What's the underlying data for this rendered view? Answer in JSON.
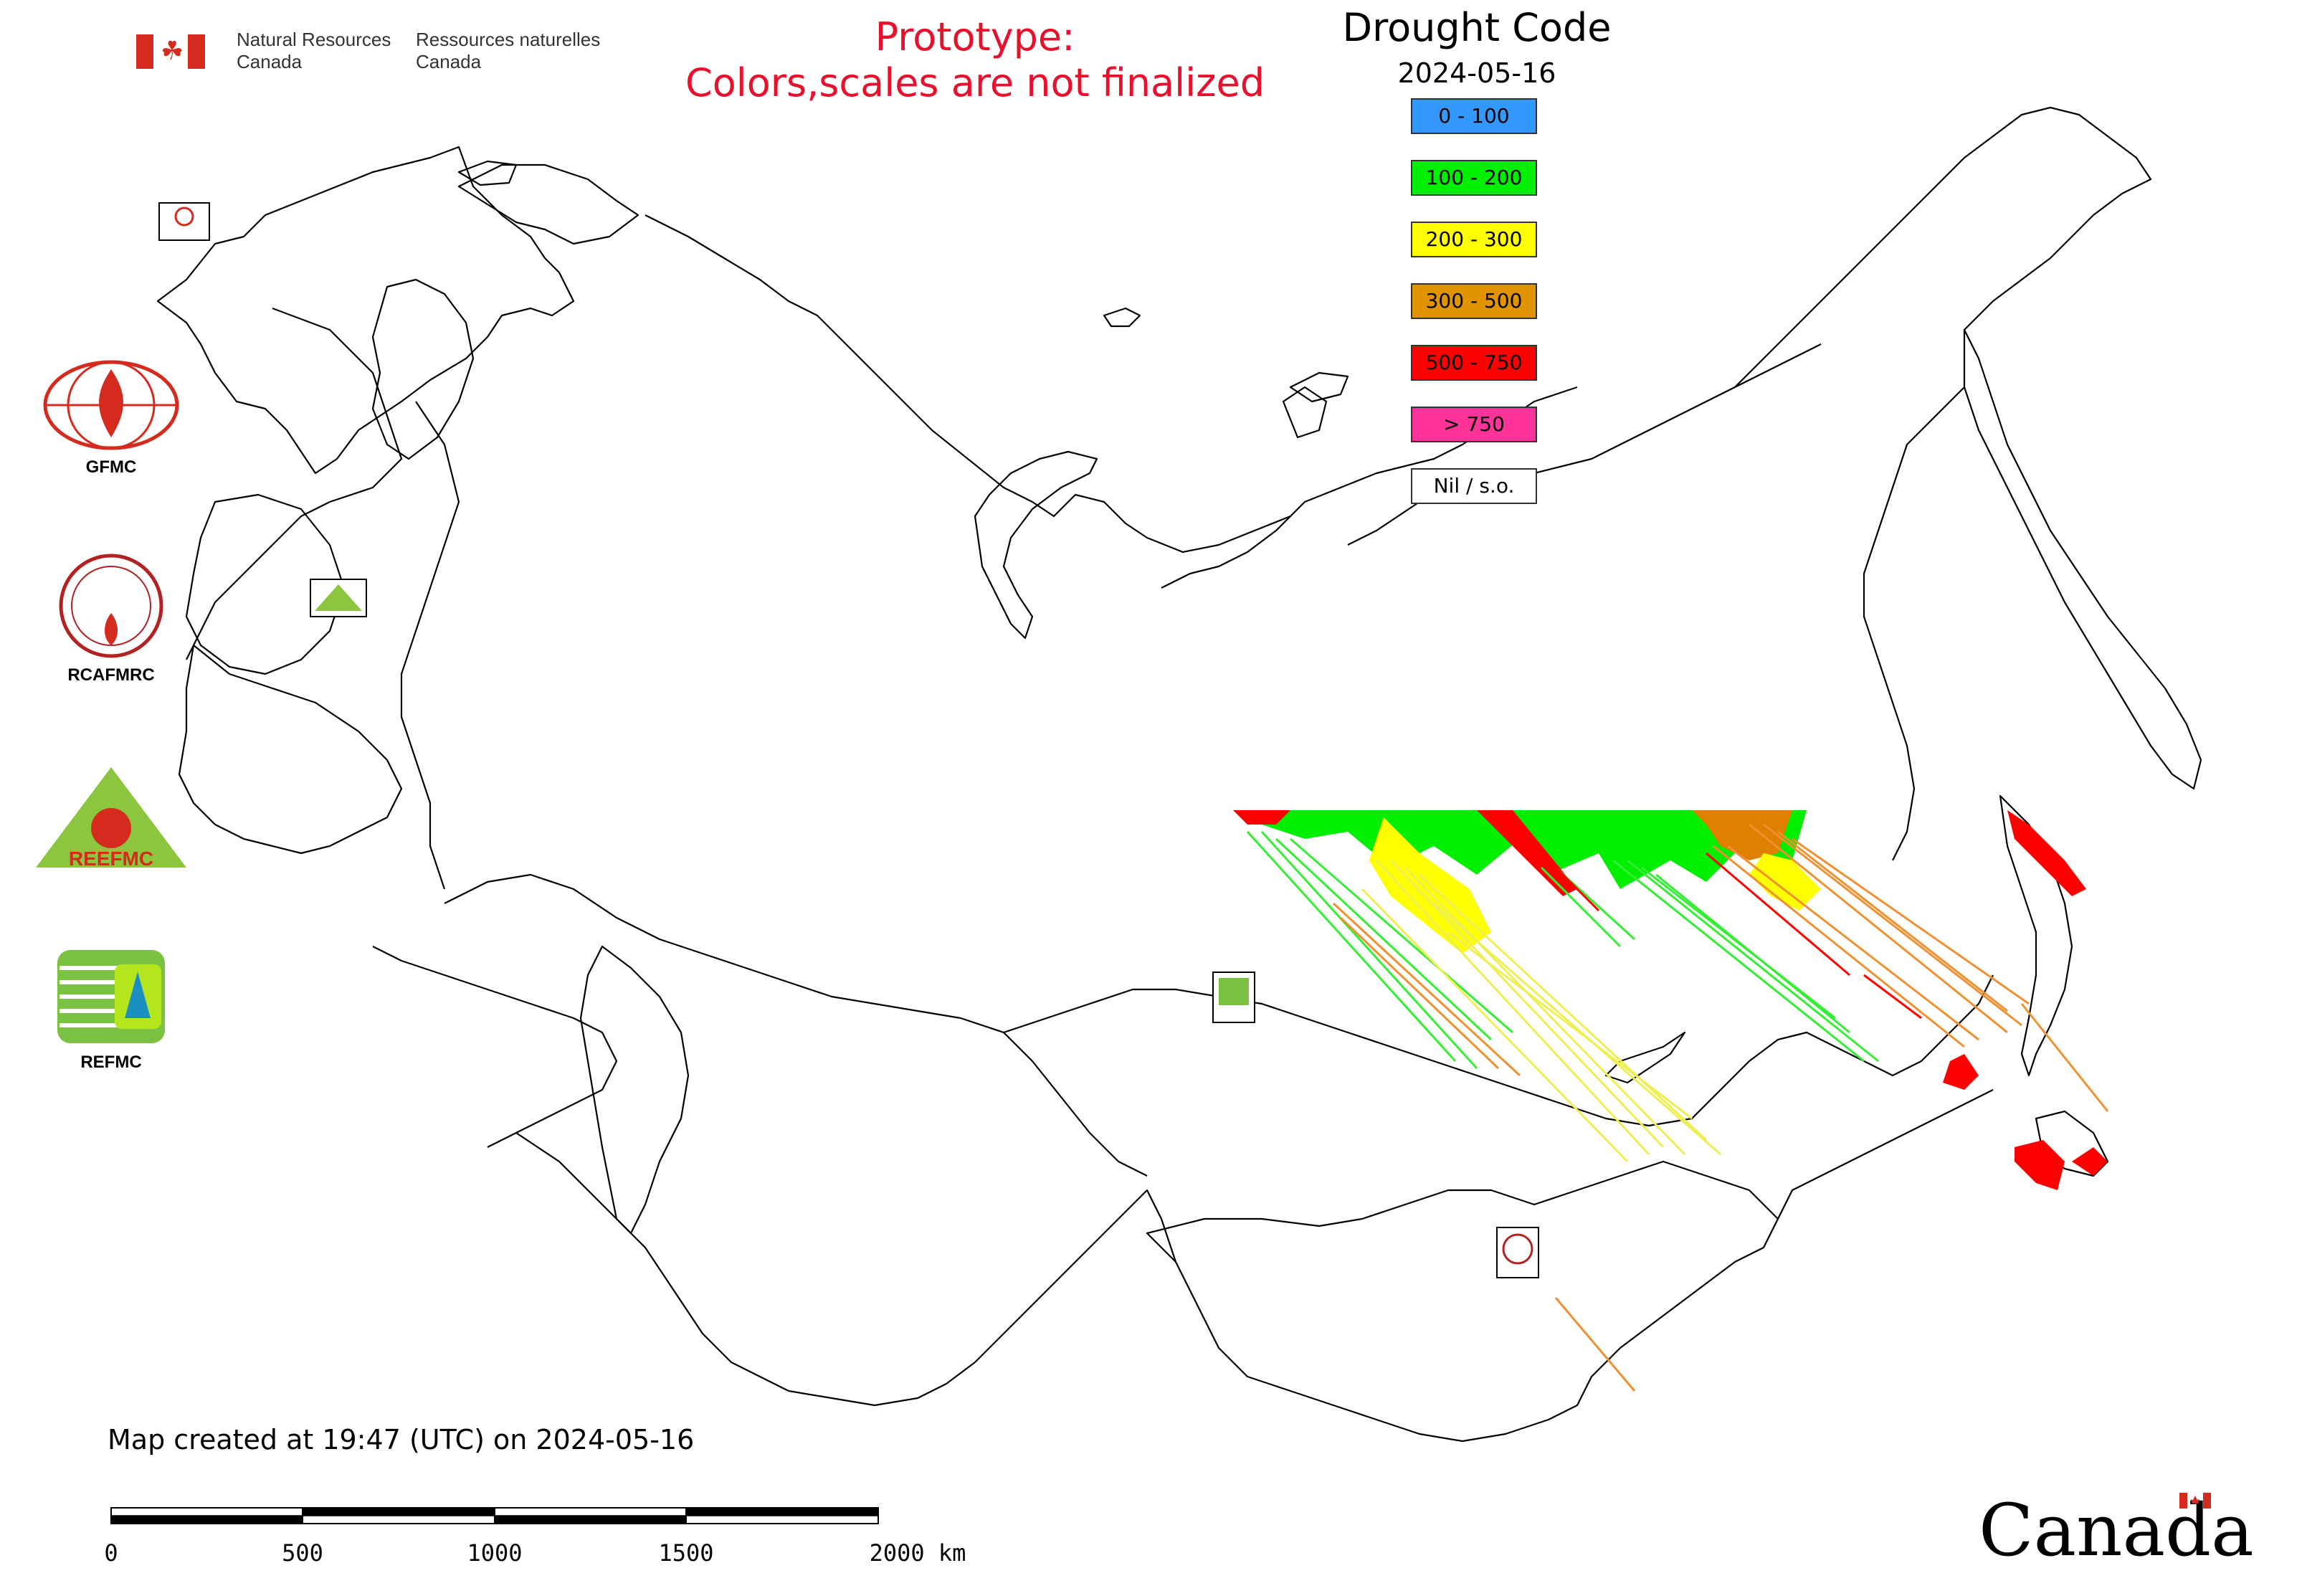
{
  "header": {
    "dept_en_line1": "Natural Resources",
    "dept_en_line2": "Canada",
    "dept_fr_line1": "Ressources naturelles",
    "dept_fr_line2": "Canada",
    "prototype_line1": "Prototype:",
    "prototype_line2": "Colors,scales are not finalized"
  },
  "legend": {
    "title": "Drought Code",
    "date": "2024-05-16",
    "items": [
      {
        "label": "0 - 100",
        "color": "#3399ff"
      },
      {
        "label": "100 - 200",
        "color": "#00ee00"
      },
      {
        "label": "200 - 300",
        "color": "#ffff00"
      },
      {
        "label": "300 - 500",
        "color": "#e09400"
      },
      {
        "label": "500 - 750",
        "color": "#ff0000"
      },
      {
        "label": "> 750",
        "color": "#ff3399"
      },
      {
        "label": "Nil / s.o.",
        "color": "#ffffff"
      }
    ]
  },
  "side_logos": [
    {
      "name": "GFMC",
      "icon": "gfmc-globe-flame-icon"
    },
    {
      "name": "RCAFMRC",
      "icon": "rcafmrc-seal-icon"
    },
    {
      "name": "REEFMC",
      "icon": "reefmc-triangle-icon"
    },
    {
      "name": "REFMC",
      "icon": "refmc-sigma-icon"
    }
  ],
  "footer": {
    "created_text": "Map created at 19:47 (UTC) on 2024-05-16",
    "scale_labels": [
      "0",
      "500",
      "1000",
      "1500",
      "2000 km"
    ],
    "wordmark": "Canada"
  },
  "colors": {
    "border": "#000000",
    "red": "#d52b1e",
    "prototype_red": "#e8112d"
  }
}
